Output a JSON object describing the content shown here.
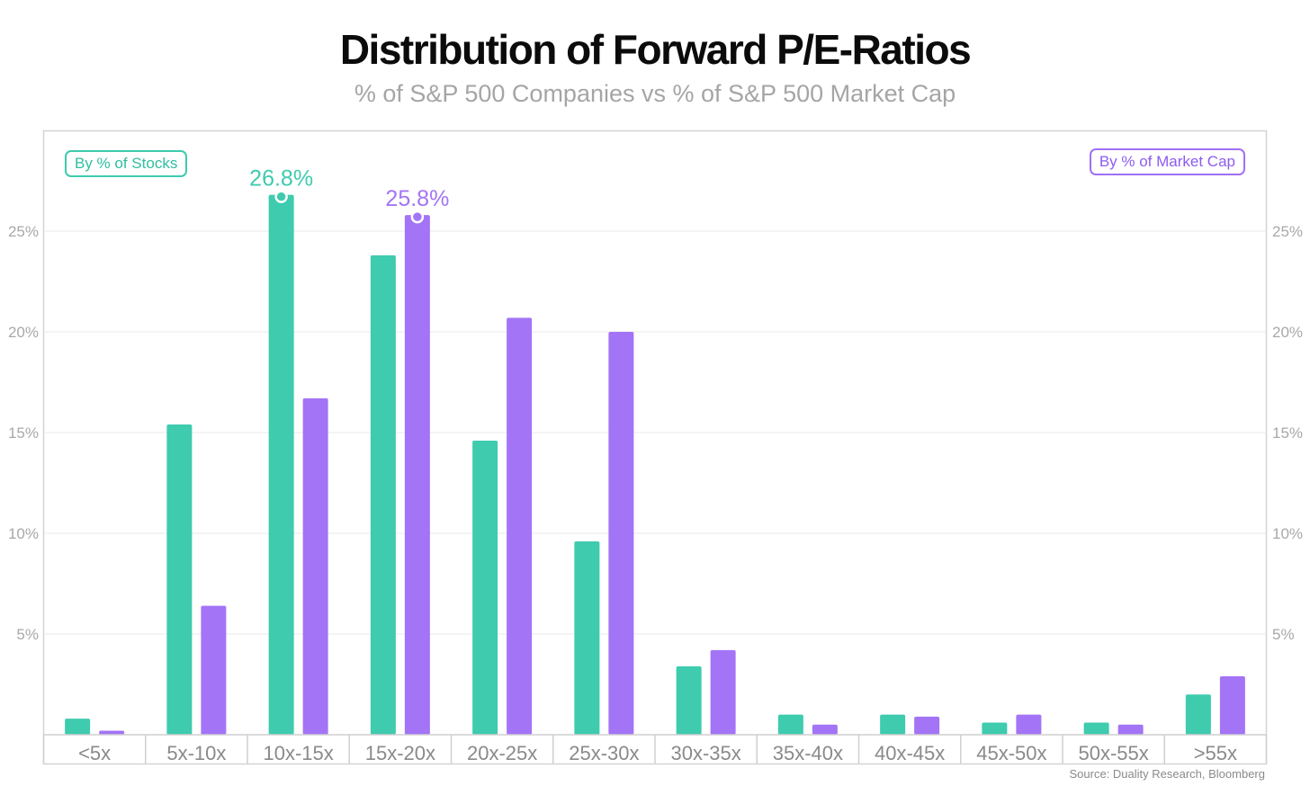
{
  "title": "Distribution of Forward P/E-Ratios",
  "subtitle": "% of S&P 500 Companies vs % of S&P 500 Market Cap",
  "source": "Source: Duality Research, Bloomberg",
  "legend": {
    "stocks": "By % of Stocks",
    "market_cap": "By % of Market Cap"
  },
  "colors": {
    "stocks": "#3ecbae",
    "market_cap": "#a374f6"
  },
  "chart_data": {
    "type": "bar",
    "title": "Distribution of Forward P/E-Ratios",
    "subtitle": "% of S&P 500 Companies vs % of S&P 500 Market Cap",
    "categories": [
      "<5x",
      "5x-10x",
      "10x-15x",
      "15x-20x",
      "20x-25x",
      "25x-30x",
      "30x-35x",
      "35x-40x",
      "40x-45x",
      "45x-50x",
      "50x-55x",
      ">55x"
    ],
    "series": [
      {
        "name": "By % of Stocks",
        "color": "#3ecbae",
        "values": [
          0.8,
          15.4,
          26.8,
          23.8,
          14.6,
          9.6,
          3.4,
          1.0,
          1.0,
          0.6,
          0.6,
          2.0
        ]
      },
      {
        "name": "By % of Market Cap",
        "color": "#a374f6",
        "values": [
          0.2,
          6.4,
          16.7,
          25.8,
          20.7,
          20.0,
          4.2,
          0.5,
          0.9,
          1.0,
          0.5,
          2.9
        ]
      }
    ],
    "annotations": [
      {
        "series": 0,
        "category": "10x-15x",
        "text": "26.8%"
      },
      {
        "series": 1,
        "category": "15x-20x",
        "text": "25.8%"
      }
    ],
    "yticks": [
      "5%",
      "10%",
      "15%",
      "20%",
      "25%"
    ],
    "ytick_values": [
      5,
      10,
      15,
      20,
      25
    ],
    "ylim": [
      0,
      30
    ],
    "grid": true,
    "legend_placement": "top-left and top-right"
  }
}
